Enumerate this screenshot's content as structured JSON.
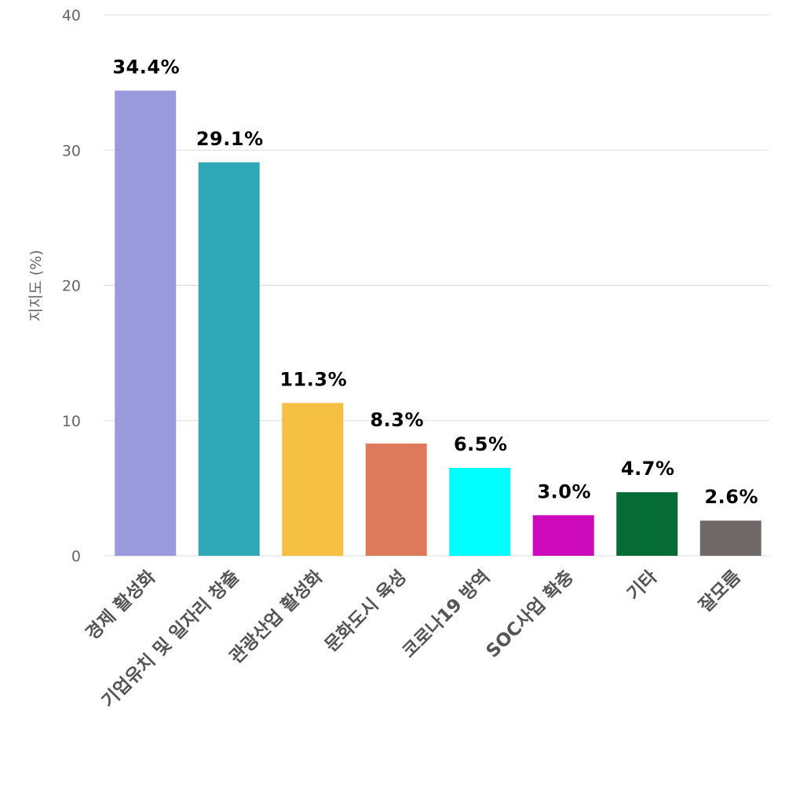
{
  "chart_data": {
    "type": "bar",
    "title": "",
    "xlabel": "",
    "ylabel": "지지도 (%)",
    "ylim": [
      0,
      40
    ],
    "yticks": [
      0,
      10,
      20,
      30,
      40
    ],
    "grid": true,
    "legend": "none",
    "categories": [
      "경제 활성화",
      "기업유치 및 일자리 창출",
      "관광산업 활성화",
      "문화도시 육성",
      "코로나19 방역",
      "SOC사업 확충",
      "기타",
      "잘모름"
    ],
    "values": [
      34.4,
      29.1,
      11.3,
      8.3,
      6.5,
      3.0,
      4.7,
      2.6
    ],
    "data_labels": [
      "34.4%",
      "29.1%",
      "11.3%",
      "8.3%",
      "6.5%",
      "3.0%",
      "4.7%",
      "2.6%"
    ],
    "colors": [
      "#9999dd",
      "#31a8b8",
      "#f5bf42",
      "#dd7a5c",
      "#00ffff",
      "#cc0abc",
      "#066c36",
      "#706866"
    ]
  }
}
